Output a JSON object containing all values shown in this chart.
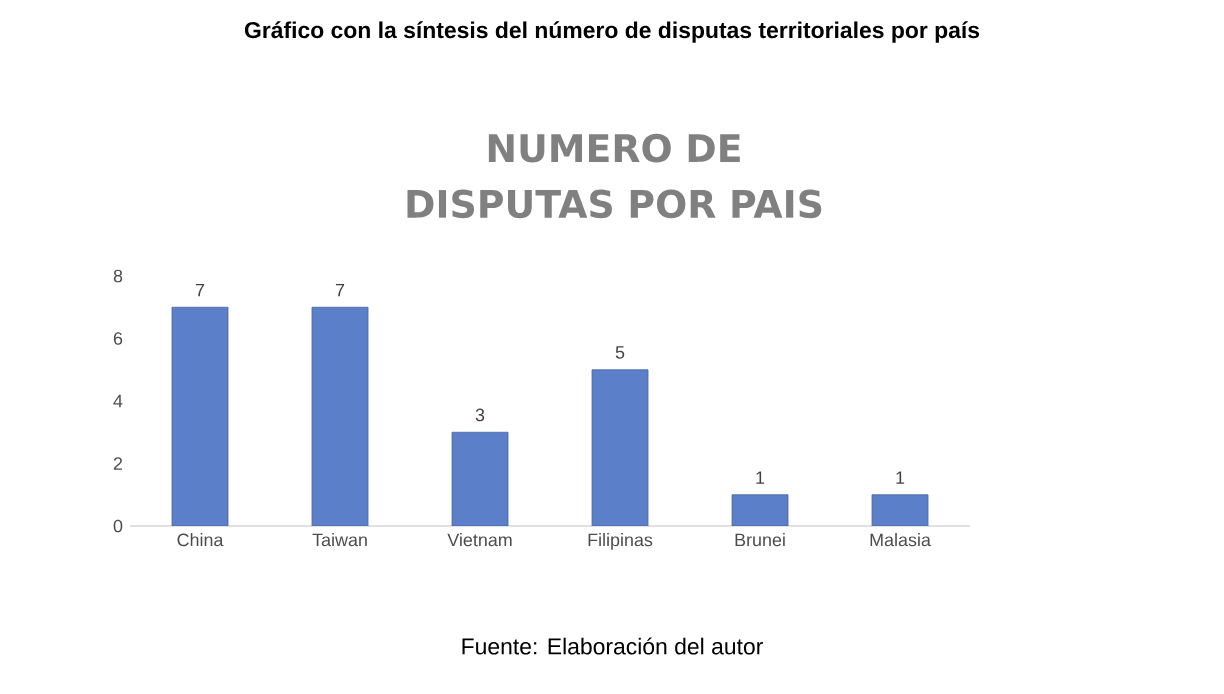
{
  "chart_data": {
    "type": "bar",
    "title": "NUMERO DE DISPUTAS POR PAIS",
    "categories": [
      "China",
      "Taiwan",
      "Vietnam",
      "Filipinas",
      "Brunei",
      "Malasia"
    ],
    "values": [
      7,
      7,
      3,
      5,
      1,
      1
    ],
    "color": "#5b7fc8",
    "ylim": [
      0,
      8
    ],
    "yticks": [
      0,
      2,
      4,
      6,
      8
    ],
    "data_labels": true,
    "annotations": [
      "Gráfico con la síntesis del número de disputas territoriales por país",
      "Fuente: Elaboración del autor"
    ]
  }
}
